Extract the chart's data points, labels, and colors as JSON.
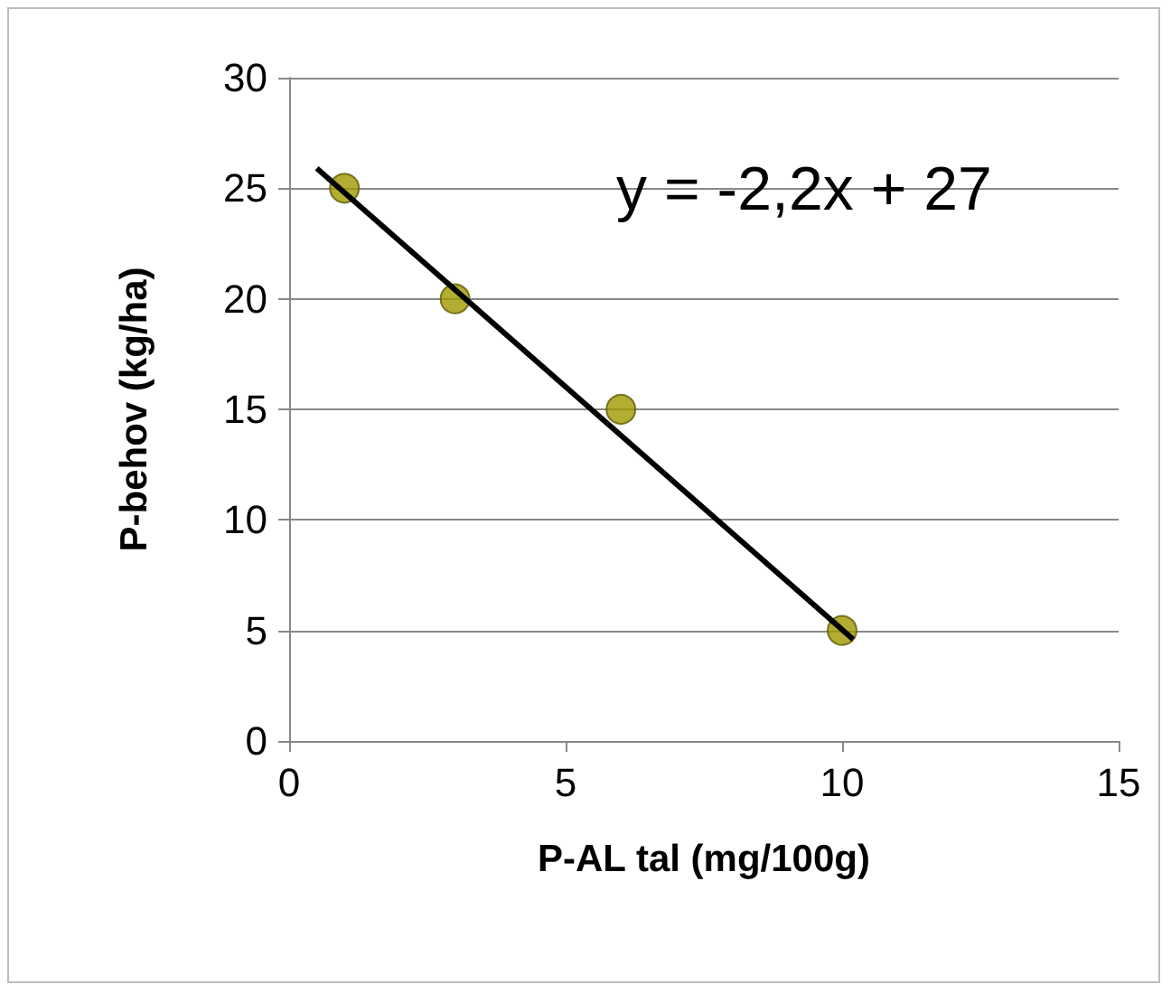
{
  "chart_data": {
    "type": "scatter",
    "xlabel": "P-AL tal (mg/100g)",
    "ylabel": "P-behov (kg/ha)",
    "xlim": [
      0,
      15
    ],
    "xticks": [
      0,
      5,
      10,
      15
    ],
    "ylim": [
      0,
      30
    ],
    "yticks": [
      0,
      5,
      10,
      15,
      20,
      25,
      30
    ],
    "grid": "y",
    "marker": "circle",
    "series": [
      {
        "color": "#a09a00",
        "x": [
          1,
          3,
          6,
          10
        ],
        "values": [
          25,
          20,
          15,
          5
        ]
      },
      {
        "type": "line",
        "color": "#000000",
        "x": [
          0.5,
          10.2
        ],
        "values": [
          25.9,
          4.6
        ],
        "marker": "none",
        "line_style": "solid"
      }
    ],
    "annotations": [
      "y = -2,2x + 27"
    ]
  }
}
